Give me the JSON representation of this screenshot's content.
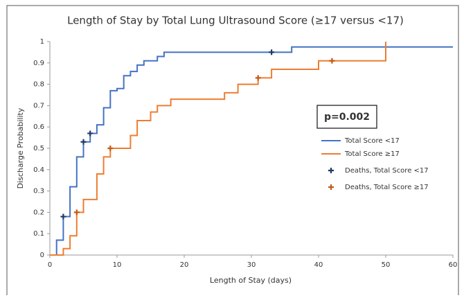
{
  "chart_data": {
    "type": "line",
    "step": true,
    "title": "Length of Stay by Total Lung Ultrasound Score (≥17 versus <17)",
    "x_label": "Length of Stay (days)",
    "y_label": "Discharge Probability",
    "annotation": "p=0.002",
    "xlim": [
      0,
      60
    ],
    "xticks": [
      0,
      10,
      20,
      30,
      40,
      50,
      60
    ],
    "ylim": [
      0,
      1
    ],
    "yticks": [
      0,
      0.1,
      0.2,
      0.3,
      0.4,
      0.5,
      0.6,
      0.7,
      0.8,
      0.9,
      1
    ],
    "grid": false,
    "legend": "right",
    "series": [
      {
        "name": "Total Score <17",
        "color": "#4472c4",
        "kind": "step",
        "x": [
          0,
          1,
          2,
          3,
          4,
          5,
          6,
          7,
          8,
          9,
          10,
          11,
          12,
          13,
          14,
          16,
          17,
          36,
          60
        ],
        "values": [
          0,
          0.07,
          0.18,
          0.32,
          0.46,
          0.53,
          0.57,
          0.61,
          0.69,
          0.77,
          0.78,
          0.84,
          0.86,
          0.89,
          0.91,
          0.93,
          0.95,
          0.975,
          0.975
        ]
      },
      {
        "name": "Total Score ≥17",
        "color": "#ed7d31",
        "kind": "step",
        "x": [
          0,
          2,
          3,
          4,
          5,
          7,
          8,
          9,
          12,
          13,
          15,
          16,
          18,
          26,
          28,
          31,
          33,
          40,
          50
        ],
        "values": [
          0,
          0.03,
          0.09,
          0.2,
          0.26,
          0.38,
          0.46,
          0.5,
          0.56,
          0.63,
          0.67,
          0.7,
          0.73,
          0.76,
          0.8,
          0.83,
          0.87,
          0.91,
          1
        ]
      },
      {
        "name": "Deaths, Total Score <17",
        "color": "#1f3864",
        "kind": "cross",
        "x": [
          2,
          5,
          6,
          33
        ],
        "values": [
          0.18,
          0.53,
          0.57,
          0.95
        ]
      },
      {
        "name": "Deaths, Total Score ≥17",
        "color": "#c55a11",
        "kind": "cross",
        "x": [
          4,
          9,
          31,
          42
        ],
        "values": [
          0.2,
          0.5,
          0.83,
          0.91
        ]
      }
    ]
  }
}
